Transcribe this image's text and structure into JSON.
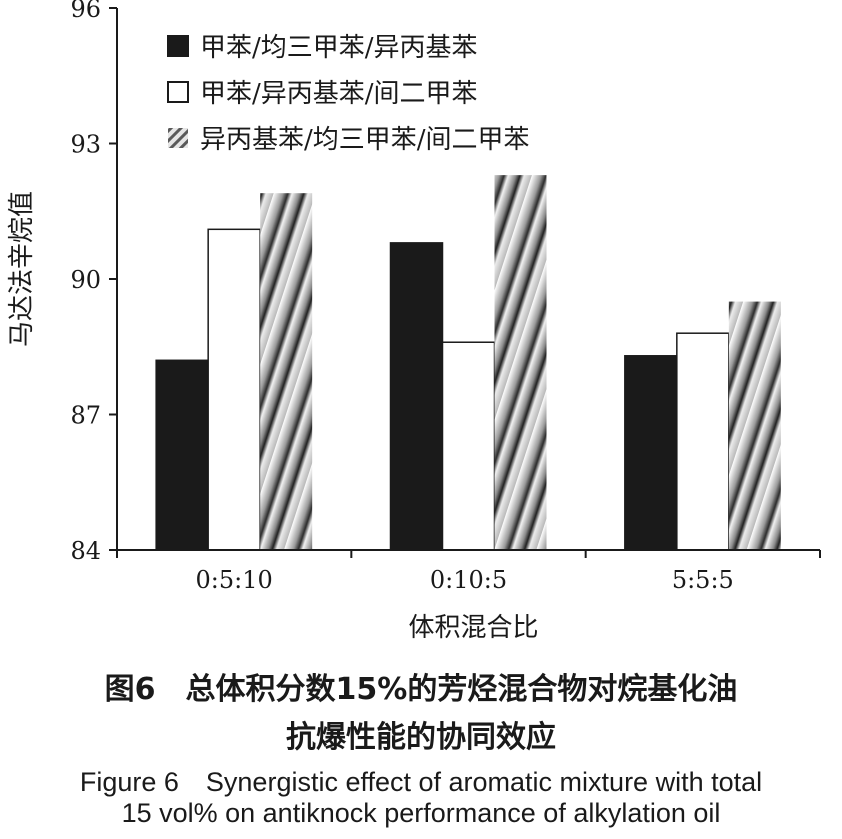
{
  "chart_data": {
    "type": "bar",
    "categories": [
      "0:5:10",
      "0:10:5",
      "5:5:5"
    ],
    "series": [
      {
        "name": "甲苯/均三甲苯/异丙基苯",
        "values": [
          88.2,
          90.8,
          88.3
        ],
        "fill": "solid-black"
      },
      {
        "name": "甲苯/异丙基苯/间二甲苯",
        "values": [
          91.1,
          88.6,
          88.8
        ],
        "fill": "white"
      },
      {
        "name": "异丙基苯/均三甲苯/间二甲苯",
        "values": [
          91.9,
          92.3,
          89.5
        ],
        "fill": "diagonal-gradient"
      }
    ],
    "xlabel": "体积混合比",
    "ylabel": "马达法辛烷值",
    "ylim": [
      84,
      96
    ],
    "yticks": [
      "84",
      "87",
      "90",
      "93",
      "96"
    ],
    "grid": false,
    "legend_position": "top-left"
  },
  "caption": {
    "cn_line1": "图6　总体积分数15%的芳烃混合物对烷基化油",
    "cn_line2": "抗爆性能的协同效应",
    "en_line1": "Figure 6　Synergistic effect of aromatic mixture with total",
    "en_line2": "15 vol% on antiknock performance of alkylation oil"
  },
  "colors": {
    "bar_black": "#1a1a1a",
    "bar_white": "#ffffff",
    "axis": "#1a1a1a"
  }
}
